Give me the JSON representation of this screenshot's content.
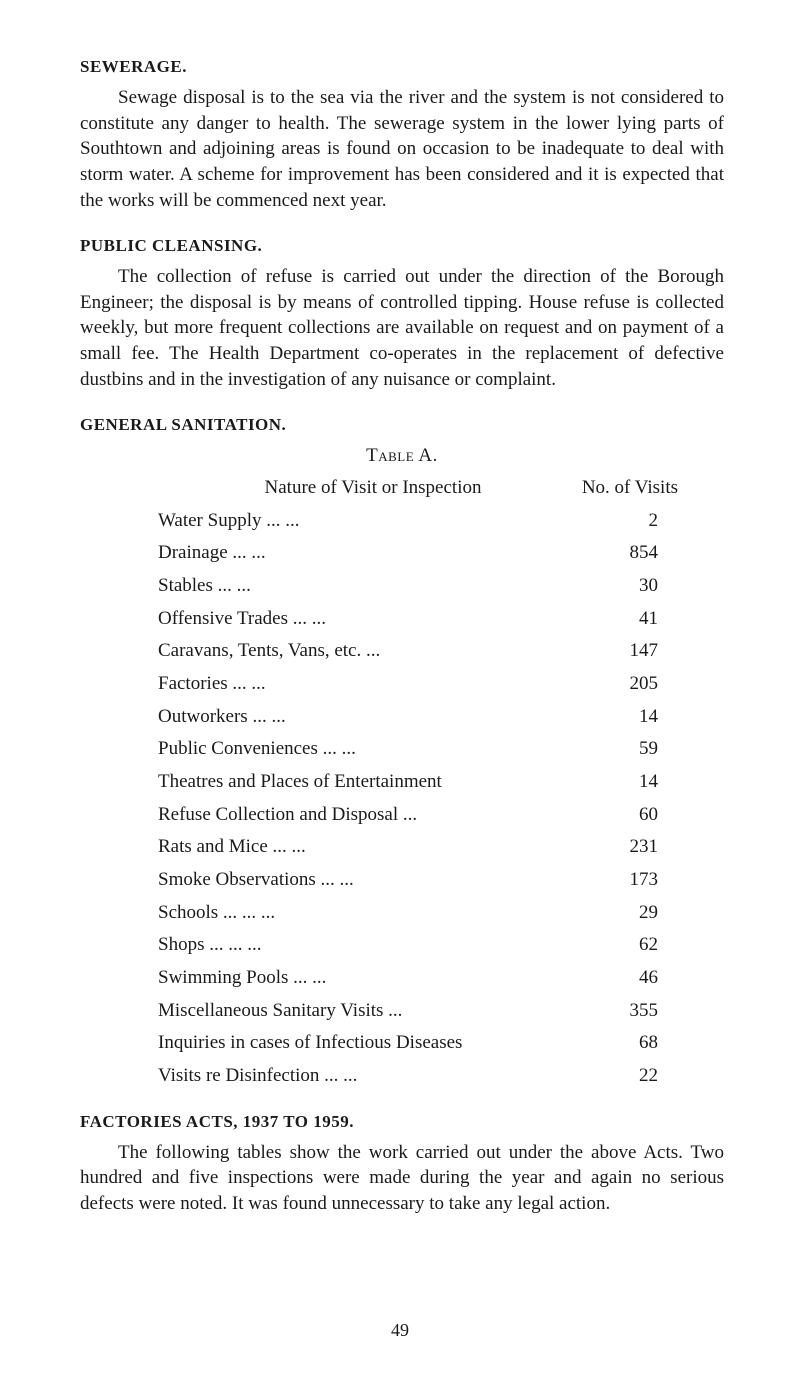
{
  "sewerage": {
    "heading": "SEWERAGE.",
    "body": "Sewage disposal is to the sea via the river and the system is not considered to constitute any danger to health. The sewerage system in the lower lying parts of Southtown and adjoining areas is found on occasion to be inadequate to deal with storm water. A scheme for improvement has been considered and it is expected that the works will be commenced next year."
  },
  "cleansing": {
    "heading": "PUBLIC CLEANSING.",
    "body": "The collection of refuse is carried out under the direction of the Borough Engineer; the disposal is by means of controlled tipping. House refuse is collected weekly, but more frequent collections are available on request and on payment of a small fee. The Health Department co-operates in the replacement of defective dustbins and in the investigation of any nuisance or complaint."
  },
  "sanitation": {
    "heading": "GENERAL SANITATION.",
    "table_title": "Table A.",
    "col_nature": "Nature of Visit or Inspection",
    "col_visits": "No. of Visits",
    "rows": [
      {
        "label": "Water Supply           ...                  ...",
        "value": "2"
      },
      {
        "label": "Drainage                   ...                  ...",
        "value": "854"
      },
      {
        "label": "Stables                      ...                  ...",
        "value": "30"
      },
      {
        "label": "Offensive Trades        ...                  ...",
        "value": "41"
      },
      {
        "label": "Caravans, Tents, Vans, etc.        ...",
        "value": "147"
      },
      {
        "label": "Factories                   ...                  ...",
        "value": "205"
      },
      {
        "label": "Outworkers               ...                  ...",
        "value": "14"
      },
      {
        "label": "Public Conveniences   ...                 ...",
        "value": "59"
      },
      {
        "label": "Theatres and Places of Entertainment",
        "value": "14"
      },
      {
        "label": "Refuse Collection and Disposal    ...",
        "value": "60"
      },
      {
        "label": "Rats and Mice           ...                  ...",
        "value": "231"
      },
      {
        "label": "Smoke Observations   ...                ...",
        "value": "173"
      },
      {
        "label": "Schools       ...            ...                  ...",
        "value": "29"
      },
      {
        "label": "Shops          ...            ...                  ...",
        "value": "62"
      },
      {
        "label": "Swimming Pools        ...                  ...",
        "value": "46"
      },
      {
        "label": "Miscellaneous Sanitary Visits      ...",
        "value": "355"
      },
      {
        "label": "Inquiries in cases of Infectious Diseases",
        "value": "68"
      },
      {
        "label": "Visits re Disinfection  ...                 ...",
        "value": "22"
      }
    ]
  },
  "factories": {
    "heading": "FACTORIES ACTS, 1937 TO 1959.",
    "body": "The following tables show the work carried out under the above Acts. Two hundred and five inspections were made during the year and again no serious defects were noted. It was found unnecessary to take any legal action."
  },
  "page_number": "49"
}
